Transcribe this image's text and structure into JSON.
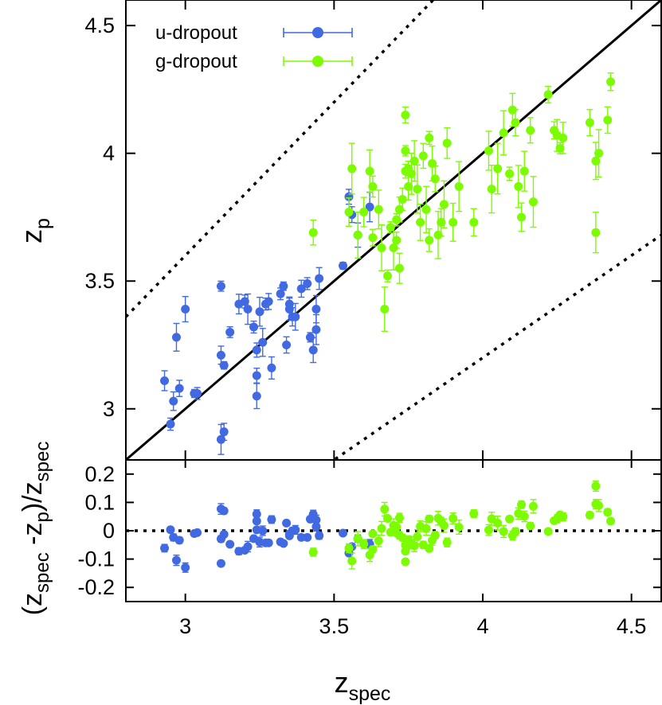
{
  "chart_data": [
    {
      "type": "scatter",
      "panel": "top",
      "xlabel": "z_spec",
      "ylabel": "z_p",
      "xlim": [
        2.8,
        4.6
      ],
      "ylim": [
        2.8,
        4.6
      ],
      "x_ticks": [
        "3",
        "3.5",
        "4",
        "4.5"
      ],
      "y_ticks": [
        "3",
        "3.5",
        "4",
        "4.5"
      ],
      "lines": [
        {
          "name": "one-to-one",
          "style": "solid",
          "slope": 1,
          "intercept": 0
        },
        {
          "name": "upper-bound",
          "style": "dotted",
          "slope": 1.2,
          "intercept": 0
        },
        {
          "name": "lower-bound",
          "style": "dotted",
          "slope": 0.8,
          "intercept": 0
        }
      ],
      "legend": {
        "position": "top-left",
        "entries": [
          "u-dropout",
          "g-dropout"
        ]
      },
      "series": [
        {
          "name": "u-dropout",
          "color": "#4169e1",
          "points": [
            [
              2.93,
              3.11
            ],
            [
              2.95,
              2.94
            ],
            [
              2.96,
              3.03
            ],
            [
              2.97,
              3.28
            ],
            [
              2.98,
              3.08
            ],
            [
              3.0,
              3.39
            ],
            [
              3.03,
              3.06
            ],
            [
              3.04,
              3.06
            ],
            [
              3.12,
              3.48
            ],
            [
              3.12,
              3.21
            ],
            [
              3.13,
              3.17
            ],
            [
              3.12,
              2.88
            ],
            [
              3.13,
              2.91
            ],
            [
              3.15,
              3.3
            ],
            [
              3.18,
              3.41
            ],
            [
              3.2,
              3.42
            ],
            [
              3.21,
              3.39
            ],
            [
              3.23,
              3.32
            ],
            [
              3.24,
              3.23
            ],
            [
              3.24,
              3.05
            ],
            [
              3.24,
              3.13
            ],
            [
              3.25,
              3.38
            ],
            [
              3.26,
              3.26
            ],
            [
              3.27,
              3.41
            ],
            [
              3.28,
              3.42
            ],
            [
              3.29,
              3.16
            ],
            [
              3.32,
              3.45
            ],
            [
              3.33,
              3.48
            ],
            [
              3.34,
              3.25
            ],
            [
              3.35,
              3.39
            ],
            [
              3.35,
              3.41
            ],
            [
              3.36,
              3.36
            ],
            [
              3.37,
              3.36
            ],
            [
              3.39,
              3.47
            ],
            [
              3.41,
              3.49
            ],
            [
              3.42,
              3.28
            ],
            [
              3.43,
              3.23
            ],
            [
              3.44,
              3.31
            ],
            [
              3.44,
              3.39
            ],
            [
              3.45,
              3.51
            ],
            [
              3.53,
              3.56
            ],
            [
              3.55,
              3.83
            ],
            [
              3.56,
              3.76
            ],
            [
              3.58,
              3.68
            ],
            [
              3.62,
              3.79
            ]
          ]
        },
        {
          "name": "g-dropout",
          "color": "#7cfc00",
          "points": [
            [
              3.43,
              3.69
            ],
            [
              3.55,
              3.77
            ],
            [
              3.56,
              3.94
            ],
            [
              3.58,
              3.68
            ],
            [
              3.6,
              3.77
            ],
            [
              3.62,
              3.93
            ],
            [
              3.63,
              3.87
            ],
            [
              3.63,
              3.67
            ],
            [
              3.65,
              3.78
            ],
            [
              3.66,
              3.63
            ],
            [
              3.67,
              3.39
            ],
            [
              3.68,
              3.52
            ],
            [
              3.69,
              3.71
            ],
            [
              3.7,
              3.63
            ],
            [
              3.71,
              3.66
            ],
            [
              3.71,
              3.74
            ],
            [
              3.72,
              3.55
            ],
            [
              3.72,
              3.78
            ],
            [
              3.73,
              3.82
            ],
            [
              3.74,
              4.15
            ],
            [
              3.74,
              4.01
            ],
            [
              3.74,
              3.93
            ],
            [
              3.75,
              3.94
            ],
            [
              3.75,
              3.87
            ],
            [
              3.76,
              3.92
            ],
            [
              3.77,
              3.97
            ],
            [
              3.78,
              3.86
            ],
            [
              3.79,
              3.73
            ],
            [
              3.8,
              3.99
            ],
            [
              3.81,
              3.78
            ],
            [
              3.82,
              4.06
            ],
            [
              3.82,
              3.66
            ],
            [
              3.83,
              3.96
            ],
            [
              3.84,
              3.9
            ],
            [
              3.85,
              3.68
            ],
            [
              3.86,
              3.73
            ],
            [
              3.87,
              3.8
            ],
            [
              3.88,
              4.04
            ],
            [
              3.9,
              3.73
            ],
            [
              3.92,
              3.87
            ],
            [
              3.97,
              3.73
            ],
            [
              4.02,
              4.01
            ],
            [
              4.03,
              3.86
            ],
            [
              4.05,
              3.94
            ],
            [
              4.07,
              4.08
            ],
            [
              4.09,
              3.92
            ],
            [
              4.1,
              4.17
            ],
            [
              4.11,
              4.12
            ],
            [
              4.12,
              3.87
            ],
            [
              4.13,
              3.75
            ],
            [
              4.14,
              3.93
            ],
            [
              4.16,
              4.09
            ],
            [
              4.17,
              3.81
            ],
            [
              4.22,
              4.23
            ],
            [
              4.24,
              4.09
            ],
            [
              4.25,
              4.07
            ],
            [
              4.26,
              4.02
            ],
            [
              4.27,
              4.06
            ],
            [
              4.36,
              4.12
            ],
            [
              4.38,
              3.97
            ],
            [
              4.38,
              3.69
            ],
            [
              4.39,
              4.0
            ],
            [
              4.42,
              4.13
            ],
            [
              4.43,
              4.28
            ]
          ]
        }
      ]
    },
    {
      "type": "scatter",
      "panel": "bottom",
      "xlabel": "z_spec",
      "ylabel": "(z_spec - z_p)/z_spec",
      "xlim": [
        2.8,
        4.6
      ],
      "ylim": [
        -0.25,
        0.25
      ],
      "y_ticks": [
        "0.2",
        "0.1",
        "0",
        "-0.1",
        "-0.2"
      ],
      "lines": [
        {
          "name": "zero",
          "style": "dotted",
          "y": 0
        }
      ],
      "series": [
        {
          "name": "u-dropout",
          "color": "#4169e1"
        },
        {
          "name": "g-dropout",
          "color": "#7cfc00"
        }
      ]
    }
  ],
  "labels": {
    "x_axis": {
      "main": "z",
      "sub": "spec"
    },
    "top_y_axis": {
      "main": "z",
      "sub": "p"
    },
    "bottom_y_axis": {
      "open": "(z",
      "sub1": "spec",
      "mid": " -z",
      "sub2": "p",
      "close": ")/z",
      "sub3": "spec"
    }
  },
  "legend": {
    "u_label": "u-dropout",
    "g_label": "g-dropout"
  }
}
